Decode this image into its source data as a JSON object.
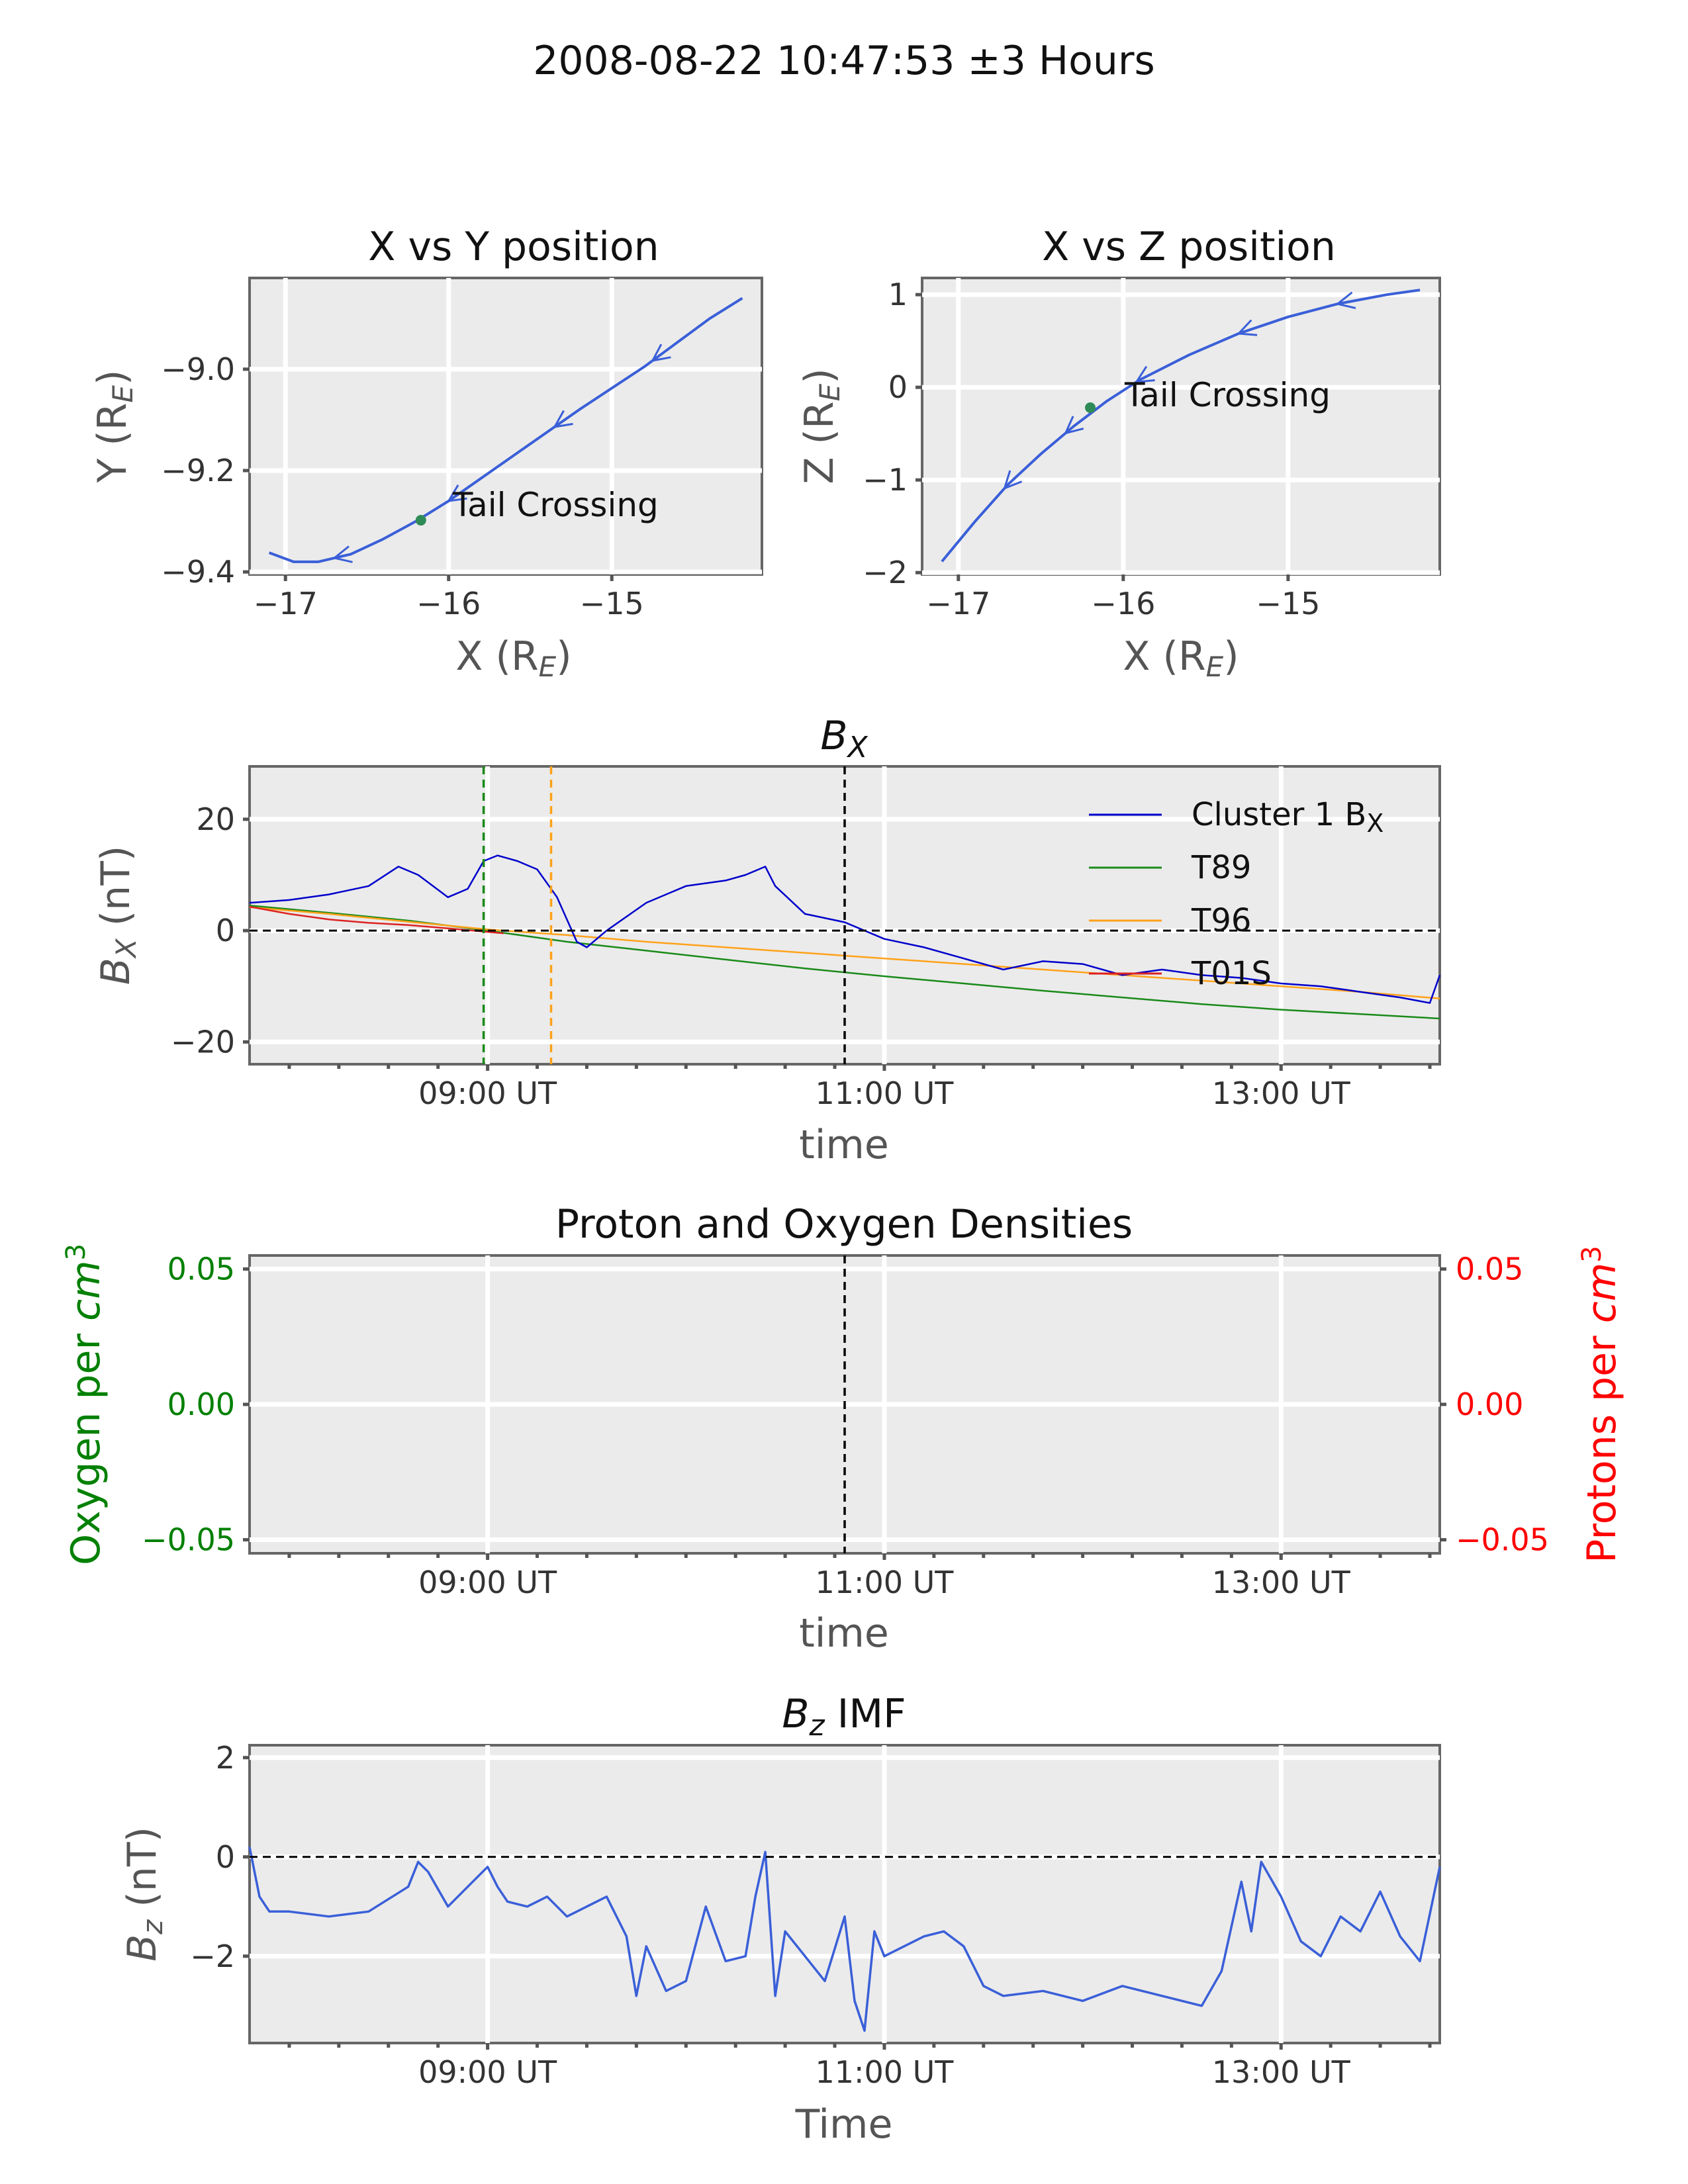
{
  "figure": {
    "suptitle": "2008-08-22 10:47:53 ±3 Hours"
  },
  "colors": {
    "background_panel": "#ebebeb",
    "trajectory": "#3a5fd8",
    "crossing_marker": "#2e8b57",
    "cluster_bx": "#0000cc",
    "t89": "#1a8a1a",
    "t96": "#ffa21a",
    "t01s": "#dd2222",
    "oxygen_axis": "#008000",
    "proton_axis": "#ff0000",
    "bz_line": "#3a5fd8",
    "reference_line": "#000000"
  },
  "chart_data": [
    {
      "id": "xy",
      "type": "line",
      "title": "X vs Y position",
      "xlabel": "X (R",
      "xlabel_sub": "E",
      "xlabel_end": ")",
      "ylabel": "Y (R",
      "ylabel_sub": "E",
      "ylabel_end": ")",
      "xlim": [
        -17.22,
        -14.08
      ],
      "ylim": [
        -9.405,
        -8.82
      ],
      "xticks": [
        -17,
        -16,
        -15
      ],
      "xtick_labels": [
        "−17",
        "−16",
        "−15"
      ],
      "yticks": [
        -9.0,
        -9.2,
        -9.4
      ],
      "ytick_labels": [
        "−9.0",
        "−9.2",
        "−9.4"
      ],
      "series": [
        {
          "x": [
            -17.1,
            -16.95,
            -16.8,
            -16.6,
            -16.4,
            -16.2,
            -16.0,
            -15.6,
            -15.2,
            -14.8,
            -14.4,
            -14.2
          ],
          "y": [
            -9.362,
            -9.38,
            -9.38,
            -9.365,
            -9.335,
            -9.3,
            -9.26,
            -9.17,
            -9.08,
            -8.995,
            -8.9,
            -8.86
          ]
        }
      ],
      "arrows_at_x": [
        -16.7,
        -16.0,
        -15.35,
        -14.75
      ],
      "marker": {
        "x": -16.17,
        "y": -9.298,
        "label": "Tail Crossing"
      }
    },
    {
      "id": "xz",
      "type": "line",
      "title": "X vs Z position",
      "xlabel": "X (R",
      "xlabel_sub": "E",
      "xlabel_end": ")",
      "ylabel": "Z (R",
      "ylabel_sub": "E",
      "ylabel_end": ")",
      "xlim": [
        -17.22,
        -14.08
      ],
      "ylim": [
        -2.02,
        1.18
      ],
      "xticks": [
        -17,
        -16,
        -15
      ],
      "xtick_labels": [
        "−17",
        "−16",
        "−15"
      ],
      "yticks": [
        1,
        0,
        -1,
        -2
      ],
      "ytick_labels": [
        "1",
        "0",
        "−1",
        "−2"
      ],
      "series": [
        {
          "x": [
            -17.1,
            -16.9,
            -16.7,
            -16.5,
            -16.3,
            -16.1,
            -15.9,
            -15.6,
            -15.3,
            -15.0,
            -14.7,
            -14.4,
            -14.2
          ],
          "y": [
            -1.88,
            -1.45,
            -1.05,
            -0.72,
            -0.42,
            -0.15,
            0.08,
            0.35,
            0.58,
            0.76,
            0.9,
            1.0,
            1.05
          ]
        }
      ],
      "arrows_at_x": [
        -16.72,
        -16.35,
        -15.92,
        -15.3,
        -14.7
      ],
      "marker": {
        "x": -16.2,
        "y": -0.22,
        "label": "Tail Crossing"
      }
    },
    {
      "id": "bx",
      "type": "line",
      "title": "B",
      "title_sub": "X",
      "xlabel": "time",
      "ylabel": "B",
      "ylabel_sub": "X",
      "ylabel_end": " (nT)",
      "xlim": [
        7.8,
        13.8
      ],
      "ylim": [
        -24,
        29.5
      ],
      "xticks_major": [
        9,
        11,
        13
      ],
      "xtick_labels": [
        "09:00 UT",
        "11:00 UT",
        "13:00 UT"
      ],
      "xticks_minor": [
        8,
        8.25,
        8.5,
        8.75,
        9.25,
        9.5,
        9.75,
        10,
        10.25,
        10.5,
        10.75,
        11.25,
        11.5,
        11.75,
        12,
        12.25,
        12.5,
        12.75,
        13.25,
        13.5,
        13.75
      ],
      "yticks": [
        20,
        0,
        -20
      ],
      "ytick_labels": [
        "20",
        "0",
        "−20"
      ],
      "hline": 0,
      "vlines": [
        {
          "x": 8.98,
          "color": "#1a8a1a"
        },
        {
          "x": 9.32,
          "color": "#ffa21a"
        },
        {
          "x": 10.8,
          "color": "#000000"
        }
      ],
      "legend": [
        "Cluster 1 B",
        "T89",
        "T96",
        "T01S"
      ],
      "legend_sub": "X",
      "series": [
        {
          "name": "Cluster 1 B",
          "x": [
            7.8,
            8.0,
            8.2,
            8.4,
            8.55,
            8.65,
            8.8,
            8.9,
            8.98,
            9.05,
            9.15,
            9.25,
            9.35,
            9.45,
            9.5,
            9.6,
            9.8,
            10.0,
            10.2,
            10.3,
            10.4,
            10.45,
            10.6,
            10.8,
            10.9,
            11.0,
            11.2,
            11.4,
            11.6,
            11.8,
            12.0,
            12.2,
            12.4,
            12.6,
            12.8,
            13.0,
            13.2,
            13.4,
            13.6,
            13.75,
            13.8
          ],
          "y": [
            5,
            5.5,
            6.5,
            8,
            11.5,
            10,
            6,
            7.5,
            12.5,
            13.5,
            12.5,
            11,
            6,
            -2,
            -3,
            0,
            5,
            8,
            9,
            10,
            11.5,
            8,
            3,
            1.5,
            0,
            -1.5,
            -3,
            -5,
            -7,
            -5.5,
            -6,
            -8,
            -7,
            -8,
            -8.5,
            -9.5,
            -10,
            -11,
            -12,
            -13,
            -8
          ]
        },
        {
          "name": "T89",
          "x": [
            7.8,
            8.2,
            8.6,
            9.0,
            9.4,
            9.8,
            10.2,
            10.6,
            11.0,
            11.4,
            11.8,
            12.2,
            12.6,
            13.0,
            13.4,
            13.8
          ],
          "y": [
            4.5,
            3.2,
            1.8,
            0,
            -2,
            -3.6,
            -5.2,
            -6.8,
            -8.2,
            -9.5,
            -10.8,
            -12,
            -13.2,
            -14.2,
            -15,
            -15.8
          ]
        },
        {
          "name": "T96",
          "x": [
            7.8,
            8.2,
            8.6,
            9.0,
            9.4,
            9.8,
            10.2,
            10.6,
            11.0,
            11.4,
            11.8,
            12.2,
            12.6,
            13.0,
            13.4,
            13.8
          ],
          "y": [
            4.2,
            3.0,
            1.6,
            0.2,
            -0.8,
            -2.0,
            -3.0,
            -4.0,
            -5.0,
            -6.0,
            -7.0,
            -8.0,
            -9.0,
            -10.0,
            -11.0,
            -12.2
          ]
        },
        {
          "name": "T01S",
          "x": [
            7.8,
            8.0,
            8.2,
            8.4,
            8.6,
            8.8,
            9.08
          ],
          "y": [
            4.3,
            3.0,
            2.0,
            1.4,
            1.0,
            0.4,
            -0.5
          ]
        }
      ]
    },
    {
      "id": "density",
      "type": "line",
      "title": "Proton and Oxygen Densities",
      "xlabel": "time",
      "ylabel_left": "Oxygen per ",
      "ylabel_left_unit": "cm",
      "ylabel_right": "Protons per ",
      "ylabel_right_unit": "cm",
      "unit_power": "3",
      "xlim": [
        7.8,
        13.8
      ],
      "ylim": [
        -0.055,
        0.055
      ],
      "xticks_major": [
        9,
        11,
        13
      ],
      "xtick_labels": [
        "09:00 UT",
        "11:00 UT",
        "13:00 UT"
      ],
      "yticks": [
        0.05,
        0.0,
        -0.05
      ],
      "ytick_labels": [
        "0.05",
        "0.00",
        "−0.05"
      ],
      "vlines": [
        {
          "x": 10.8,
          "color": "#000000"
        }
      ],
      "series": []
    },
    {
      "id": "bz",
      "type": "line",
      "title": "B",
      "title_sub": "z",
      "title_end": " IMF",
      "xlabel": "Time",
      "ylabel": "B",
      "ylabel_sub": "z",
      "ylabel_end": " (nT)",
      "xlim": [
        7.8,
        13.8
      ],
      "ylim": [
        -3.75,
        2.25
      ],
      "xticks_major": [
        9,
        11,
        13
      ],
      "xtick_labels": [
        "09:00 UT",
        "11:00 UT",
        "13:00 UT"
      ],
      "yticks": [
        2,
        0,
        -2
      ],
      "ytick_labels": [
        "2",
        "0",
        "−2"
      ],
      "hline": 0,
      "series": [
        {
          "name": "B_z IMF",
          "x": [
            7.8,
            7.85,
            7.9,
            8.0,
            8.2,
            8.4,
            8.6,
            8.65,
            8.7,
            8.8,
            8.9,
            9.0,
            9.05,
            9.1,
            9.2,
            9.3,
            9.4,
            9.5,
            9.6,
            9.7,
            9.75,
            9.8,
            9.9,
            10.0,
            10.1,
            10.2,
            10.3,
            10.35,
            10.4,
            10.45,
            10.5,
            10.6,
            10.7,
            10.8,
            10.85,
            10.9,
            10.95,
            11.0,
            11.1,
            11.2,
            11.3,
            11.4,
            11.5,
            11.6,
            11.8,
            12.0,
            12.2,
            12.4,
            12.6,
            12.7,
            12.8,
            12.85,
            12.9,
            13.0,
            13.1,
            13.2,
            13.3,
            13.4,
            13.5,
            13.6,
            13.7,
            13.8
          ],
          "y": [
            0.2,
            -0.8,
            -1.1,
            -1.1,
            -1.2,
            -1.1,
            -0.6,
            -0.1,
            -0.3,
            -1.0,
            -0.6,
            -0.2,
            -0.6,
            -0.9,
            -1.0,
            -0.8,
            -1.2,
            -1.0,
            -0.8,
            -1.6,
            -2.8,
            -1.8,
            -2.7,
            -2.5,
            -1.0,
            -2.1,
            -2.0,
            -0.8,
            0.1,
            -2.8,
            -1.5,
            -2.0,
            -2.5,
            -1.2,
            -2.9,
            -3.5,
            -1.5,
            -2.0,
            -1.8,
            -1.6,
            -1.5,
            -1.8,
            -2.6,
            -2.8,
            -2.7,
            -2.9,
            -2.6,
            -2.8,
            -3.0,
            -2.3,
            -0.5,
            -1.5,
            -0.1,
            -0.8,
            -1.7,
            -2.0,
            -1.2,
            -1.5,
            -0.7,
            -1.6,
            -2.1,
            -0.2
          ]
        }
      ]
    }
  ]
}
